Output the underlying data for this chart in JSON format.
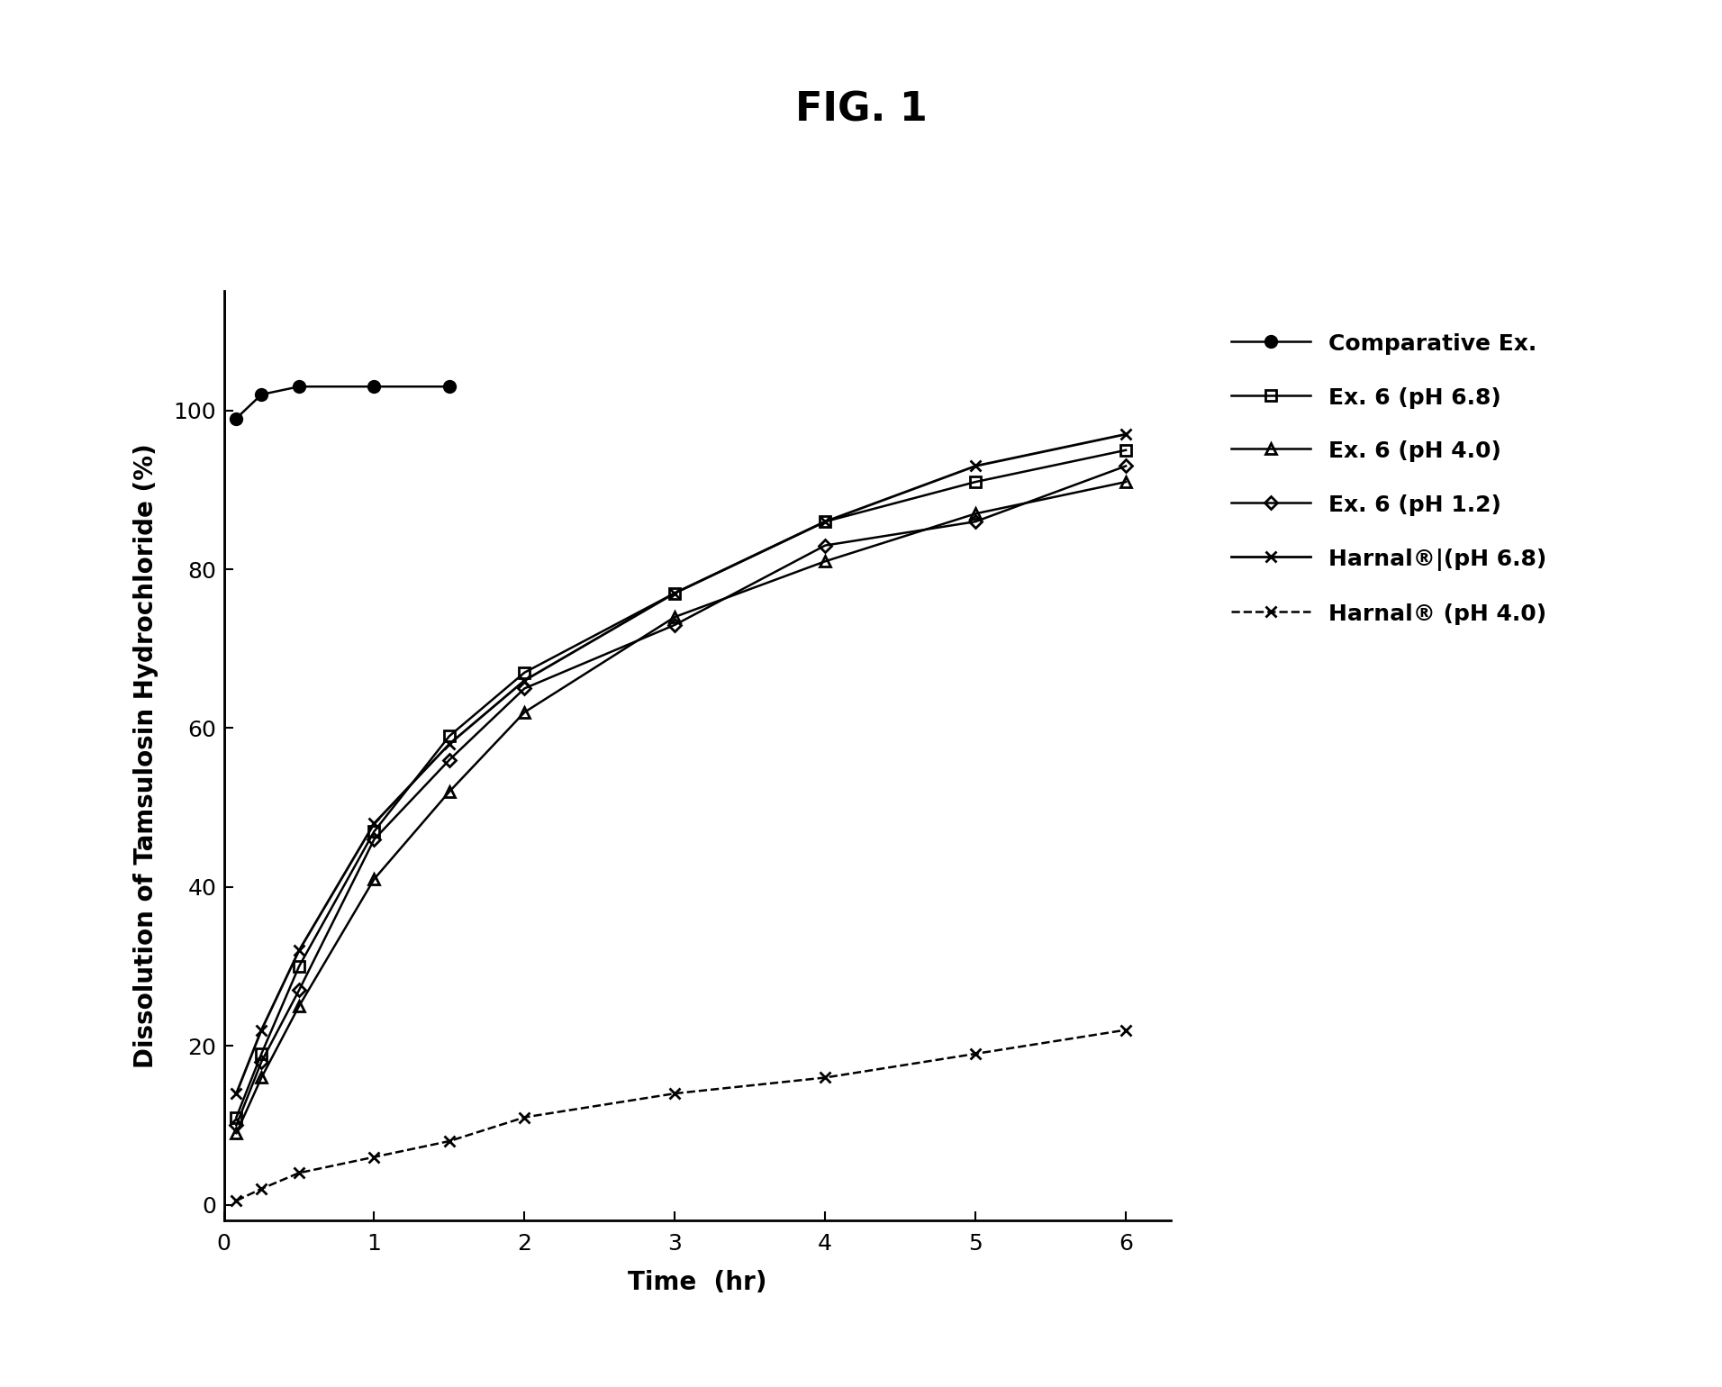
{
  "title": "FIG. 1",
  "xlabel": "Time  (hr)",
  "ylabel": "Dissolution of Tamsulosin Hydrochloride (%)",
  "xlim": [
    0,
    6.3
  ],
  "ylim": [
    -2,
    115
  ],
  "xticks": [
    0,
    1,
    2,
    3,
    4,
    5,
    6
  ],
  "yticks": [
    0,
    20,
    40,
    60,
    80,
    100
  ],
  "series": [
    {
      "label": "Comparative Ex.",
      "x": [
        0.083,
        0.25,
        0.5,
        1.0,
        1.5
      ],
      "y": [
        99,
        102,
        103,
        103,
        103
      ],
      "color": "#000000",
      "linestyle": "-",
      "marker": "o",
      "markerfilled": true,
      "linewidth": 1.8,
      "markersize": 9
    },
    {
      "label": "Ex. 6 (pH 6.8)",
      "x": [
        0.083,
        0.25,
        0.5,
        1.0,
        1.5,
        2.0,
        3.0,
        4.0,
        5.0,
        6.0
      ],
      "y": [
        11,
        19,
        30,
        47,
        59,
        67,
        77,
        86,
        91,
        95
      ],
      "color": "#000000",
      "linestyle": "-",
      "marker": "s",
      "markerfilled": false,
      "linewidth": 1.8,
      "markersize": 8
    },
    {
      "label": "Ex. 6 (pH 4.0)",
      "x": [
        0.083,
        0.25,
        0.5,
        1.0,
        1.5,
        2.0,
        3.0,
        4.0,
        5.0,
        6.0
      ],
      "y": [
        9,
        16,
        25,
        41,
        52,
        62,
        74,
        81,
        87,
        91
      ],
      "color": "#000000",
      "linestyle": "-",
      "marker": "^",
      "markerfilled": false,
      "linewidth": 1.8,
      "markersize": 8
    },
    {
      "label": "Ex. 6 (pH 1.2)",
      "x": [
        0.083,
        0.25,
        0.5,
        1.0,
        1.5,
        2.0,
        3.0,
        4.0,
        5.0,
        6.0
      ],
      "y": [
        10,
        18,
        27,
        46,
        56,
        65,
        73,
        83,
        86,
        93
      ],
      "color": "#000000",
      "linestyle": "-",
      "marker": "D",
      "markerfilled": false,
      "linewidth": 1.8,
      "markersize": 7
    },
    {
      "label": "Harnal®|(pH 6.8)",
      "x": [
        0.083,
        0.25,
        0.5,
        1.0,
        1.5,
        2.0,
        3.0,
        4.0,
        5.0,
        6.0
      ],
      "y": [
        14,
        22,
        32,
        48,
        58,
        66,
        77,
        86,
        93,
        97
      ],
      "color": "#000000",
      "linestyle": "-",
      "marker": "x",
      "markerfilled": false,
      "linewidth": 2.0,
      "markersize": 9
    },
    {
      "label": "Harnal® (pH 4.0)",
      "x": [
        0.083,
        0.25,
        0.5,
        1.0,
        1.5,
        2.0,
        3.0,
        4.0,
        5.0,
        6.0
      ],
      "y": [
        0.5,
        2,
        4,
        6,
        8,
        11,
        14,
        16,
        19,
        22
      ],
      "color": "#000000",
      "linestyle": "--",
      "marker": "x",
      "markerfilled": false,
      "linewidth": 1.8,
      "markersize": 9
    }
  ],
  "background_color": "#ffffff",
  "title_fontsize": 32,
  "axis_label_fontsize": 20,
  "tick_fontsize": 18,
  "legend_fontsize": 18
}
